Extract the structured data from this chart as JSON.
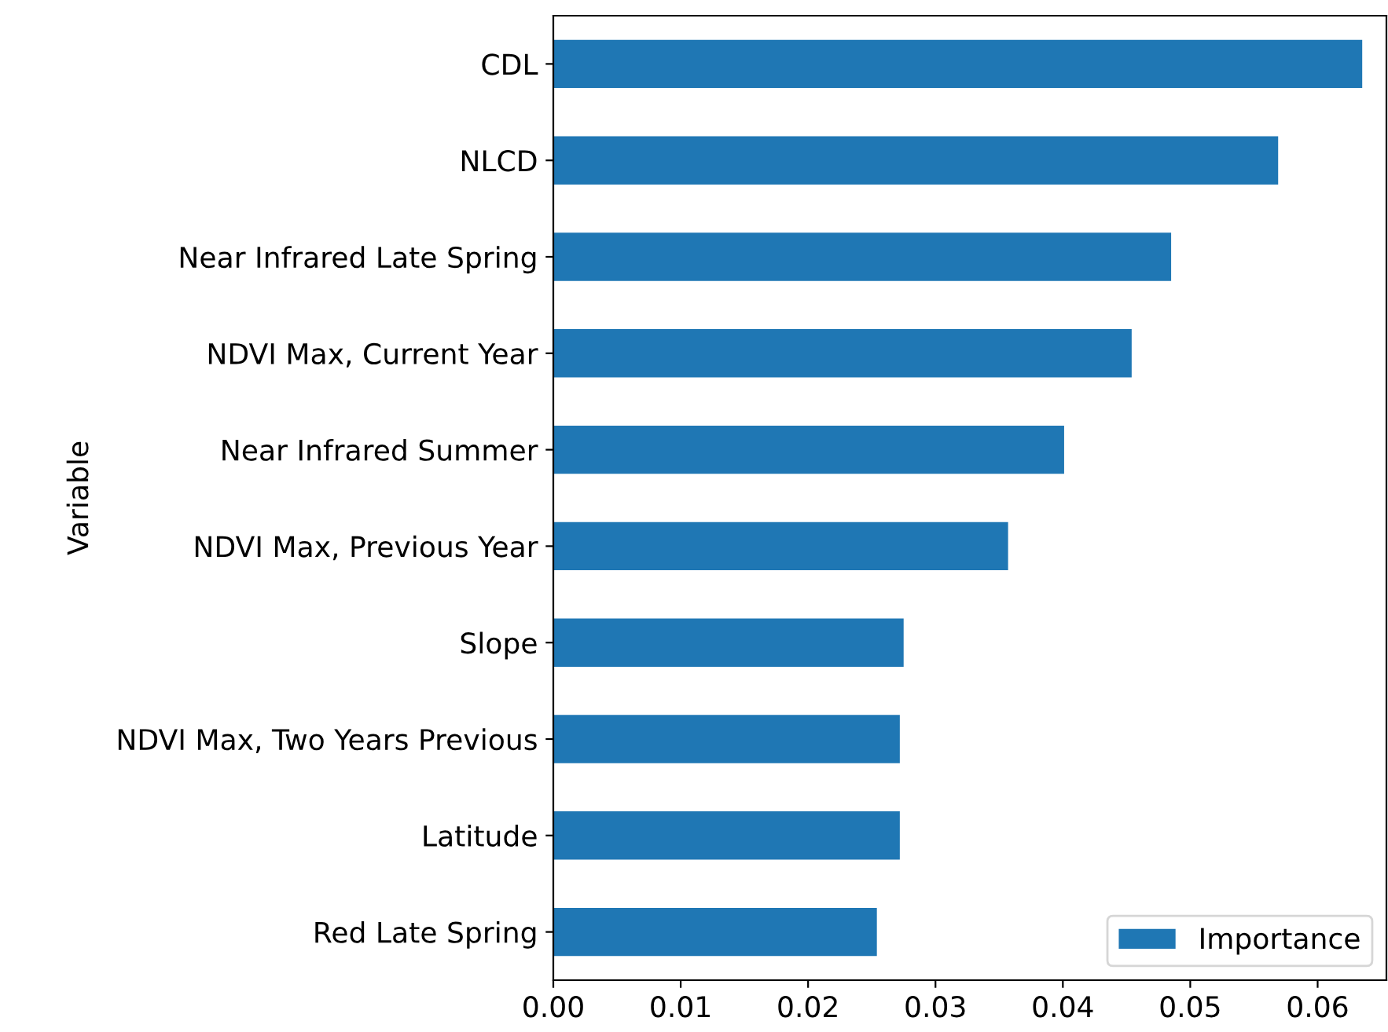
{
  "chart_data": {
    "type": "bar",
    "orientation": "horizontal",
    "ylabel": "Variable",
    "categories": [
      "CDL",
      "NLCD",
      "Near Infrared Late Spring",
      "NDVI Max, Current Year",
      "Near Infrared Summer",
      "NDVI Max, Previous Year",
      "Slope",
      "NDVI Max, Two Years Previous",
      "Latitude",
      "Red Late Spring"
    ],
    "series": [
      {
        "name": "Importance",
        "color": "#1f77b4",
        "values": [
          0.0635,
          0.0569,
          0.0485,
          0.0454,
          0.0401,
          0.0357,
          0.0275,
          0.0272,
          0.0272,
          0.0254
        ]
      }
    ],
    "xlim": [
      0,
      0.0654
    ],
    "xticks": [
      {
        "value": 0,
        "label": "0.00"
      },
      {
        "value": 0.01,
        "label": "0.01"
      },
      {
        "value": 0.02,
        "label": "0.02"
      },
      {
        "value": 0.03,
        "label": "0.03"
      },
      {
        "value": 0.04,
        "label": "0.04"
      },
      {
        "value": 0.05,
        "label": "0.05"
      },
      {
        "value": 0.06,
        "label": "0.06"
      }
    ],
    "legend": "bottom right",
    "grid": false
  }
}
